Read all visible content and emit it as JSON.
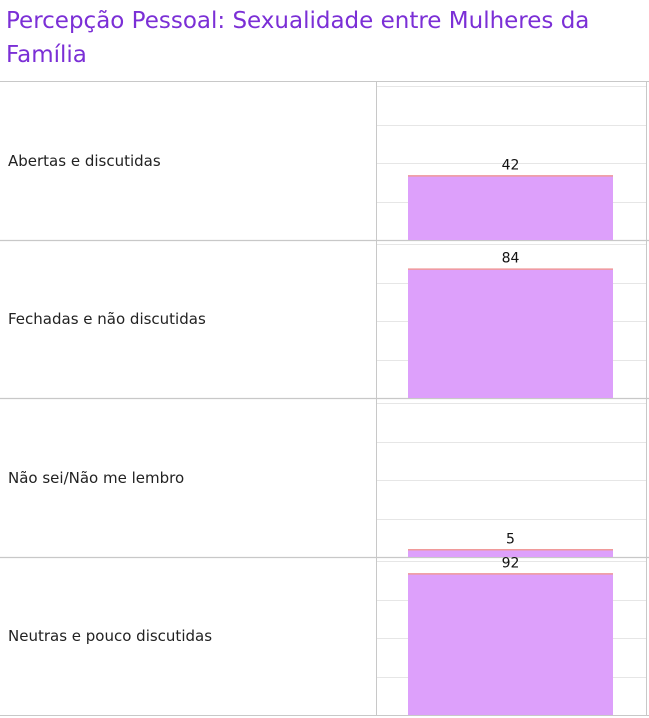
{
  "title": "Percepção Pessoal: Sexualidade entre Mulheres da Família",
  "colors": {
    "title": "#7b2fd6",
    "bar": "#dda0fb",
    "bar_top": "#f09a9a",
    "grid": "#e6e6e6",
    "divider": "#c8c8c8"
  },
  "chart_data": {
    "type": "bar",
    "orientation": "vertical-per-row",
    "categories": [
      "Abertas e discutidas",
      "Fechadas e não discutidas",
      "Não sei/Não me lembro",
      "Neutras e pouco discutidas"
    ],
    "values": [
      42,
      84,
      5,
      92
    ],
    "title": "Percepção Pessoal: Sexualidade entre Mulheres da Família",
    "ylim": [
      0,
      100
    ],
    "grid": true,
    "legend": "none"
  }
}
